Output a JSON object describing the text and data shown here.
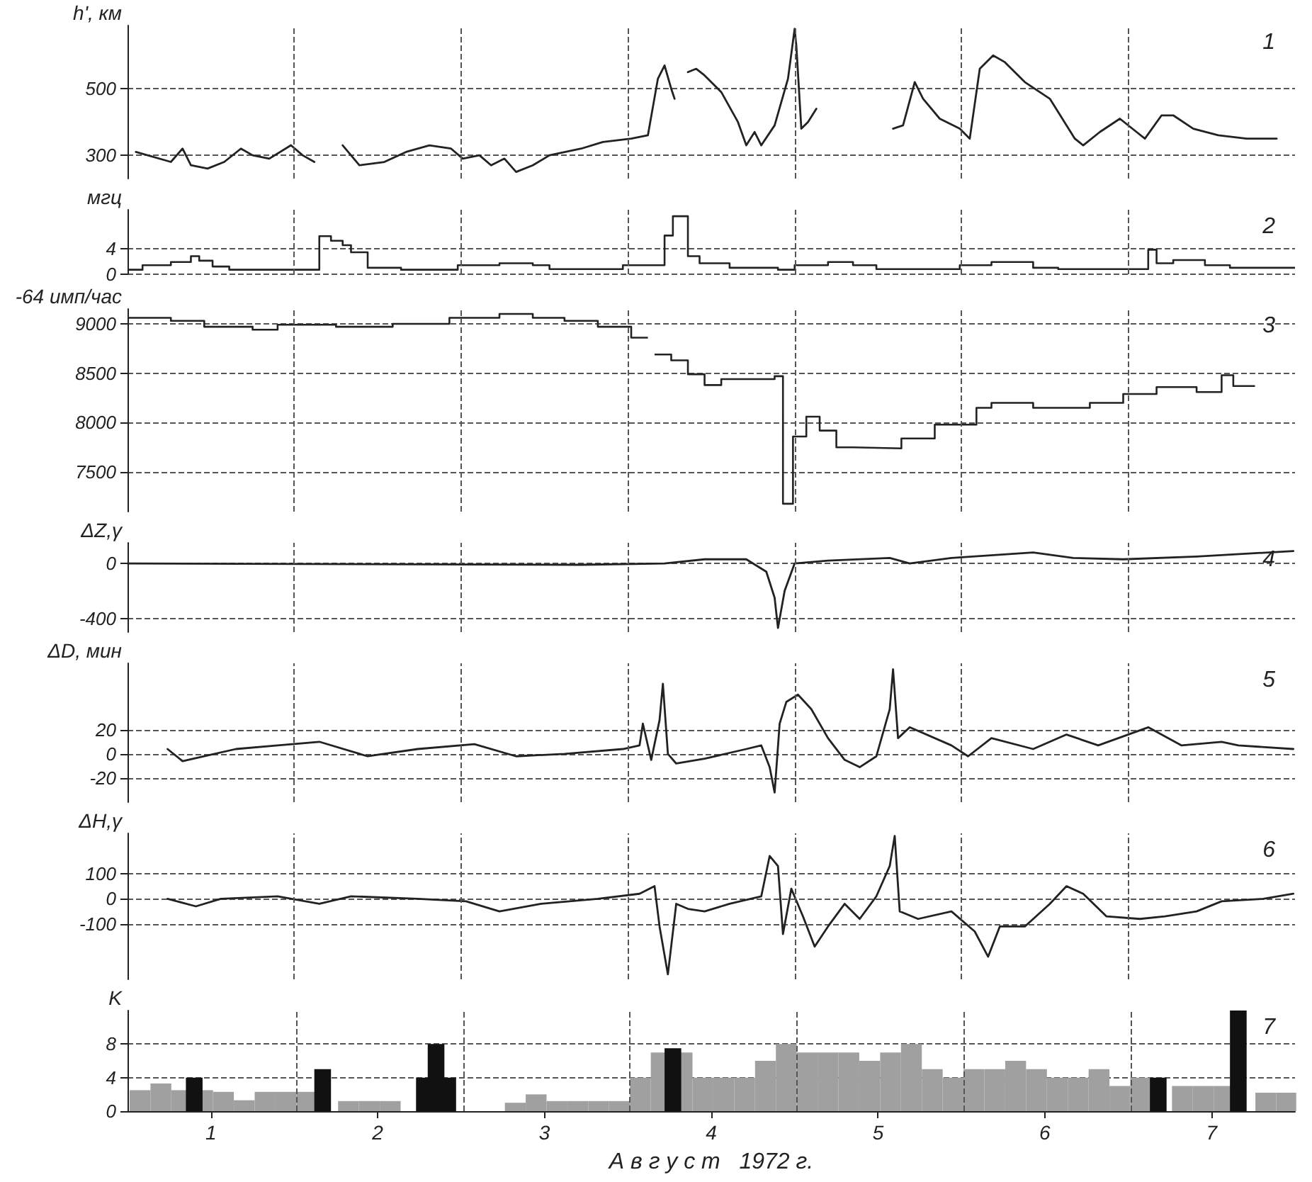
{
  "chart_data": [
    {
      "type": "line",
      "ylabel": "h', км",
      "xlim": [
        1,
        8
      ],
      "ylim": [
        230,
        690
      ],
      "yticks": [
        300,
        500
      ],
      "grid": "y",
      "tick_labels": "y",
      "annotations": [
        "1"
      ],
      "ref_lines": [
        {
          "axis": "x",
          "value": 2,
          "line_style": "dashed"
        },
        {
          "axis": "x",
          "value": 3,
          "line_style": "dashed"
        },
        {
          "axis": "x",
          "value": 4,
          "line_style": "dashed"
        },
        {
          "axis": "x",
          "value": 5,
          "line_style": "dashed"
        },
        {
          "axis": "x",
          "value": 6,
          "line_style": "dashed"
        },
        {
          "axis": "x",
          "value": 7,
          "line_style": "dashed"
        }
      ],
      "series": [
        {
          "color": "#222222",
          "x": [
            1.05,
            1.26,
            1.33,
            1.38,
            1.48,
            1.58,
            1.68,
            1.75,
            1.85,
            1.98,
            2.05,
            2.12,
            2.2,
            2.29,
            2.39,
            2.54,
            2.67,
            2.81,
            2.94,
            3.01,
            3.11,
            3.18,
            3.26,
            3.33,
            3.43,
            3.53,
            3.72,
            3.85,
            4.02,
            4.12,
            4.18,
            4.22,
            4.26,
            4.28,
            4.32,
            4.36,
            4.41,
            4.46,
            4.56,
            4.66,
            4.71,
            4.76,
            4.8,
            4.88,
            4.96,
            5.0,
            5.01,
            5.04,
            5.08,
            5.13,
            5.3,
            5.59,
            5.65,
            5.72,
            5.77,
            5.87,
            5.99,
            6.05,
            6.11,
            6.19,
            6.26,
            6.38,
            6.53,
            6.68,
            6.73,
            6.83,
            6.95,
            7.05,
            7.1,
            7.2,
            7.27,
            7.39,
            7.54,
            7.71,
            7.89
          ],
          "values": [
            310,
            280,
            320,
            270,
            260,
            280,
            320,
            300,
            290,
            330,
            300,
            280,
            null,
            330,
            270,
            280,
            310,
            330,
            320,
            290,
            300,
            270,
            290,
            250,
            270,
            300,
            320,
            340,
            350,
            360,
            530,
            570,
            500,
            470,
            null,
            550,
            560,
            540,
            490,
            400,
            330,
            370,
            330,
            390,
            530,
            680,
            630,
            380,
            400,
            440,
            null,
            380,
            390,
            520,
            470,
            410,
            380,
            350,
            560,
            600,
            580,
            520,
            470,
            350,
            330,
            370,
            410,
            370,
            350,
            420,
            420,
            380,
            360,
            350,
            350
          ]
        }
      ]
    },
    {
      "type": "step",
      "ylabel": "мгц",
      "xlim": [
        1,
        8
      ],
      "ylim": [
        0,
        10
      ],
      "yticks": [
        0,
        4
      ],
      "grid": "y",
      "tick_labels": "y",
      "annotations": [
        "2"
      ],
      "ref_lines": [
        {
          "axis": "x",
          "value": 2,
          "line_style": "dashed"
        },
        {
          "axis": "x",
          "value": 3,
          "line_style": "dashed"
        },
        {
          "axis": "x",
          "value": 4,
          "line_style": "dashed"
        },
        {
          "axis": "x",
          "value": 5,
          "line_style": "dashed"
        },
        {
          "axis": "x",
          "value": 6,
          "line_style": "dashed"
        },
        {
          "axis": "x",
          "value": 7,
          "line_style": "dashed"
        }
      ],
      "series": [
        {
          "color": "#222222",
          "x": [
            1.0,
            1.09,
            1.26,
            1.38,
            1.43,
            1.51,
            1.61,
            2.15,
            2.22,
            2.29,
            2.34,
            2.44,
            2.64,
            2.98,
            3.23,
            3.43,
            3.53,
            3.97,
            4.22,
            4.27,
            4.36,
            4.43,
            4.61,
            4.9,
            5.0,
            5.2,
            5.35,
            5.49,
            5.99,
            6.18,
            6.43,
            6.58,
            7.12,
            7.17,
            7.27,
            7.46,
            7.61,
            8.0
          ],
          "values": [
            0.7,
            1.4,
            1.9,
            2.8,
            2.1,
            1.2,
            0.7,
            5.9,
            5.2,
            4.5,
            3.4,
            1.0,
            0.7,
            1.4,
            1.7,
            1.4,
            0.8,
            1.4,
            6,
            9,
            2.8,
            1.7,
            1.0,
            0.7,
            1.4,
            1.9,
            1.4,
            0.8,
            1.4,
            1.9,
            1.0,
            0.8,
            3.8,
            1.7,
            2.2,
            1.4,
            1.0,
            1.0
          ]
        }
      ]
    },
    {
      "type": "step",
      "ylabel": "-64 имп/час",
      "xlim": [
        1,
        8
      ],
      "ylim": [
        7100,
        9150
      ],
      "yticks": [
        7500,
        8000,
        8500,
        9000
      ],
      "grid": "y",
      "tick_labels": "y",
      "annotations": [
        "3"
      ],
      "ref_lines": [
        {
          "axis": "x",
          "value": 2,
          "line_style": "dashed"
        },
        {
          "axis": "x",
          "value": 3,
          "line_style": "dashed"
        },
        {
          "axis": "x",
          "value": 4,
          "line_style": "dashed"
        },
        {
          "axis": "x",
          "value": 5,
          "line_style": "dashed"
        },
        {
          "axis": "x",
          "value": 6,
          "line_style": "dashed"
        },
        {
          "axis": "x",
          "value": 7,
          "line_style": "dashed"
        }
      ],
      "series": [
        {
          "color": "#222222",
          "x": [
            1.0,
            1.26,
            1.46,
            1.75,
            1.9,
            2.25,
            2.59,
            2.93,
            3.23,
            3.43,
            3.62,
            3.82,
            4.02,
            4.07,
            4.12,
            4.16,
            4.26,
            4.36,
            4.46,
            4.56,
            4.88,
            4.93,
            4.99,
            5.07,
            5.15,
            5.25,
            5.35,
            5.64,
            5.84,
            6.09,
            6.18,
            6.43,
            6.77,
            6.97,
            7.17,
            7.41,
            7.56,
            7.63,
            7.76
          ],
          "values": [
            9060,
            9030,
            8970,
            8940,
            8990,
            8970,
            9000,
            9060,
            9100,
            9060,
            9030,
            8970,
            8860,
            8860,
            null,
            8690,
            8630,
            8490,
            8380,
            8440,
            8470,
            7180,
            7860,
            8060,
            7920,
            7750,
            7740,
            7840,
            7980,
            8150,
            8200,
            8150,
            8200,
            8290,
            8360,
            8310,
            8480,
            8370,
            8370
          ]
        }
      ]
    },
    {
      "type": "line",
      "ylabel": "ΔZ,γ",
      "xlim": [
        1,
        8
      ],
      "ylim": [
        -500,
        150
      ],
      "yticks": [
        -400,
        0
      ],
      "grid": "y",
      "tick_labels": "y",
      "annotations": [
        "4"
      ],
      "ref_lines": [
        {
          "axis": "x",
          "value": 2,
          "line_style": "dashed"
        },
        {
          "axis": "x",
          "value": 3,
          "line_style": "dashed"
        },
        {
          "axis": "x",
          "value": 4,
          "line_style": "dashed"
        },
        {
          "axis": "x",
          "value": 5,
          "line_style": "dashed"
        },
        {
          "axis": "x",
          "value": 6,
          "line_style": "dashed"
        },
        {
          "axis": "x",
          "value": 7,
          "line_style": "dashed"
        }
      ],
      "series": [
        {
          "color": "#222222",
          "x": [
            1.0,
            3.72,
            4.22,
            4.46,
            4.71,
            4.83,
            4.88,
            4.9,
            4.94,
            5.0,
            5.2,
            5.57,
            5.69,
            5.94,
            6.43,
            6.67,
            6.97,
            7.41,
            7.99
          ],
          "values": [
            0,
            -10,
            0,
            30,
            30,
            -60,
            -250,
            -470,
            -200,
            0,
            20,
            40,
            0,
            40,
            80,
            40,
            30,
            50,
            90
          ]
        }
      ]
    },
    {
      "type": "line",
      "ylabel": "ΔD, мин",
      "xlim": [
        1,
        8
      ],
      "ylim": [
        -40,
        75
      ],
      "yticks": [
        -20,
        0,
        20
      ],
      "grid": "y",
      "tick_labels": "y",
      "annotations": [
        "5"
      ],
      "ref_lines": [
        {
          "axis": "x",
          "value": 2,
          "line_style": "dashed"
        },
        {
          "axis": "x",
          "value": 3,
          "line_style": "dashed"
        },
        {
          "axis": "x",
          "value": 4,
          "line_style": "dashed"
        },
        {
          "axis": "x",
          "value": 5,
          "line_style": "dashed"
        },
        {
          "axis": "x",
          "value": 6,
          "line_style": "dashed"
        },
        {
          "axis": "x",
          "value": 7,
          "line_style": "dashed"
        }
      ],
      "series": [
        {
          "color": "#222222",
          "x": [
            1.24,
            1.33,
            1.46,
            1.65,
            1.9,
            2.15,
            2.44,
            2.74,
            3.08,
            3.33,
            3.62,
            3.97,
            4.07,
            4.09,
            4.14,
            4.19,
            4.21,
            4.24,
            4.29,
            4.46,
            4.71,
            4.8,
            4.85,
            4.88,
            4.91,
            4.95,
            5.02,
            5.1,
            5.2,
            5.3,
            5.39,
            5.49,
            5.57,
            5.59,
            5.62,
            5.69,
            5.94,
            6.04,
            6.18,
            6.43,
            6.63,
            6.82,
            7.12,
            7.32,
            7.56,
            7.66,
            7.99
          ],
          "values": [
            4,
            -6,
            -2,
            4,
            7,
            10,
            -2,
            4,
            8,
            -2,
            0,
            4,
            7,
            25,
            -5,
            28,
            58,
            0,
            -8,
            -4,
            4,
            7,
            -11,
            -32,
            25,
            43,
            49,
            37,
            13,
            -5,
            -11,
            -2,
            37,
            70,
            13,
            22,
            7,
            -2,
            13,
            4,
            16,
            7,
            22,
            7,
            10,
            7,
            4
          ]
        }
      ]
    },
    {
      "type": "line",
      "ylabel": "ΔH,γ",
      "xlim": [
        1,
        8
      ],
      "ylim": [
        -320,
        260
      ],
      "yticks": [
        -100,
        0,
        100
      ],
      "grid": "y",
      "tick_labels": "y",
      "annotations": [
        "6"
      ],
      "ref_lines": [
        {
          "axis": "x",
          "value": 2,
          "line_style": "dashed"
        },
        {
          "axis": "x",
          "value": 3,
          "line_style": "dashed"
        },
        {
          "axis": "x",
          "value": 4,
          "line_style": "dashed"
        },
        {
          "axis": "x",
          "value": 5,
          "line_style": "dashed"
        },
        {
          "axis": "x",
          "value": 6,
          "line_style": "dashed"
        },
        {
          "axis": "x",
          "value": 7,
          "line_style": "dashed"
        }
      ],
      "series": [
        {
          "color": "#222222",
          "x": [
            1.24,
            1.41,
            1.56,
            1.9,
            2.15,
            2.34,
            2.74,
            3.03,
            3.23,
            3.48,
            3.82,
            4.07,
            4.16,
            4.19,
            4.24,
            4.29,
            4.36,
            4.46,
            4.61,
            4.8,
            4.85,
            4.9,
            4.93,
            4.98,
            5.05,
            5.12,
            5.2,
            5.3,
            5.39,
            5.49,
            5.57,
            5.6,
            5.63,
            5.74,
            5.94,
            6.08,
            6.16,
            6.23,
            6.38,
            6.53,
            6.63,
            6.73,
            6.87,
            7.07,
            7.22,
            7.41,
            7.56,
            7.81,
            7.99
          ],
          "values": [
            0,
            -30,
            0,
            10,
            -20,
            10,
            0,
            -10,
            -50,
            -20,
            0,
            20,
            50,
            -110,
            -300,
            -20,
            -40,
            -50,
            -20,
            10,
            170,
            130,
            -140,
            40,
            -70,
            -190,
            -110,
            -20,
            -80,
            10,
            130,
            250,
            -50,
            -80,
            -50,
            -130,
            -230,
            -110,
            -110,
            -20,
            50,
            20,
            -70,
            -80,
            -70,
            -50,
            -10,
            0,
            20
          ]
        }
      ]
    },
    {
      "type": "bar",
      "ylabel": "K",
      "xlabel": "А в г у с т   1972 г.",
      "xlim": [
        1,
        8
      ],
      "ylim": [
        0,
        12
      ],
      "yticks": [
        0,
        4,
        8
      ],
      "grid": "y",
      "annotations": [
        "7"
      ],
      "xticks": [
        {
          "value": 1.5,
          "label": "1"
        },
        {
          "value": 2.5,
          "label": "2"
        },
        {
          "value": 3.5,
          "label": "3"
        },
        {
          "value": 4.5,
          "label": "4"
        },
        {
          "value": 5.5,
          "label": "5"
        },
        {
          "value": 6.5,
          "label": "6"
        },
        {
          "value": 7.5,
          "label": "7"
        }
      ],
      "ref_lines": [
        {
          "axis": "x",
          "value": 2,
          "line_style": "dashed"
        },
        {
          "axis": "x",
          "value": 3,
          "line_style": "dashed"
        },
        {
          "axis": "x",
          "value": 4,
          "line_style": "dashed"
        },
        {
          "axis": "x",
          "value": 5,
          "line_style": "dashed"
        },
        {
          "axis": "x",
          "value": 6,
          "line_style": "dashed"
        },
        {
          "axis": "x",
          "value": 7,
          "line_style": "dashed"
        }
      ],
      "series": [
        {
          "color": "#a0a0a0",
          "x": [
            1.0625,
            1.1875,
            1.3125,
            1.4375,
            1.5625,
            1.6875,
            1.8125,
            1.9375,
            2.0625,
            2.1875,
            2.3125,
            2.4375,
            2.5625,
            2.6875,
            2.8125,
            2.9375,
            3.0625,
            3.1875,
            3.3125,
            3.4375,
            3.5625,
            3.6875,
            3.8125,
            3.9375,
            4.0625,
            4.1875,
            4.3125,
            4.4375,
            4.5625,
            4.6875,
            4.8125,
            4.9375,
            5.0625,
            5.1875,
            5.3125,
            5.4375,
            5.5625,
            5.6875,
            5.8125,
            5.9375,
            6.0625,
            6.1875,
            6.3125,
            6.4375,
            6.5625,
            6.6875,
            6.8125,
            6.9375,
            7.0625,
            7.1875,
            7.3125,
            7.4375,
            7.5625,
            7.6875,
            7.8125,
            7.9375
          ],
          "values": [
            2.5,
            3.3,
            2.5,
            2.5,
            2.3,
            1.3,
            2.3,
            2.3,
            2.3,
            null,
            1.2,
            1.2,
            1.2,
            null,
            null,
            null,
            null,
            null,
            1,
            2,
            1.2,
            1.2,
            1.2,
            1.2,
            4,
            7,
            7,
            4,
            4,
            4,
            6,
            8,
            7,
            7,
            7,
            6,
            7,
            8,
            5,
            4,
            5,
            5,
            6,
            5,
            4,
            4,
            5,
            3,
            4,
            null,
            3,
            3,
            3,
            null,
            2.2,
            2.2
          ]
        },
        {
          "color": "#111111",
          "x": [
            1.4,
            2.17,
            2.78,
            2.85,
            2.92,
            4.27,
            7.18,
            7.66
          ],
          "values": [
            4,
            5,
            4,
            8,
            4,
            7.5,
            4,
            12
          ]
        }
      ]
    }
  ]
}
